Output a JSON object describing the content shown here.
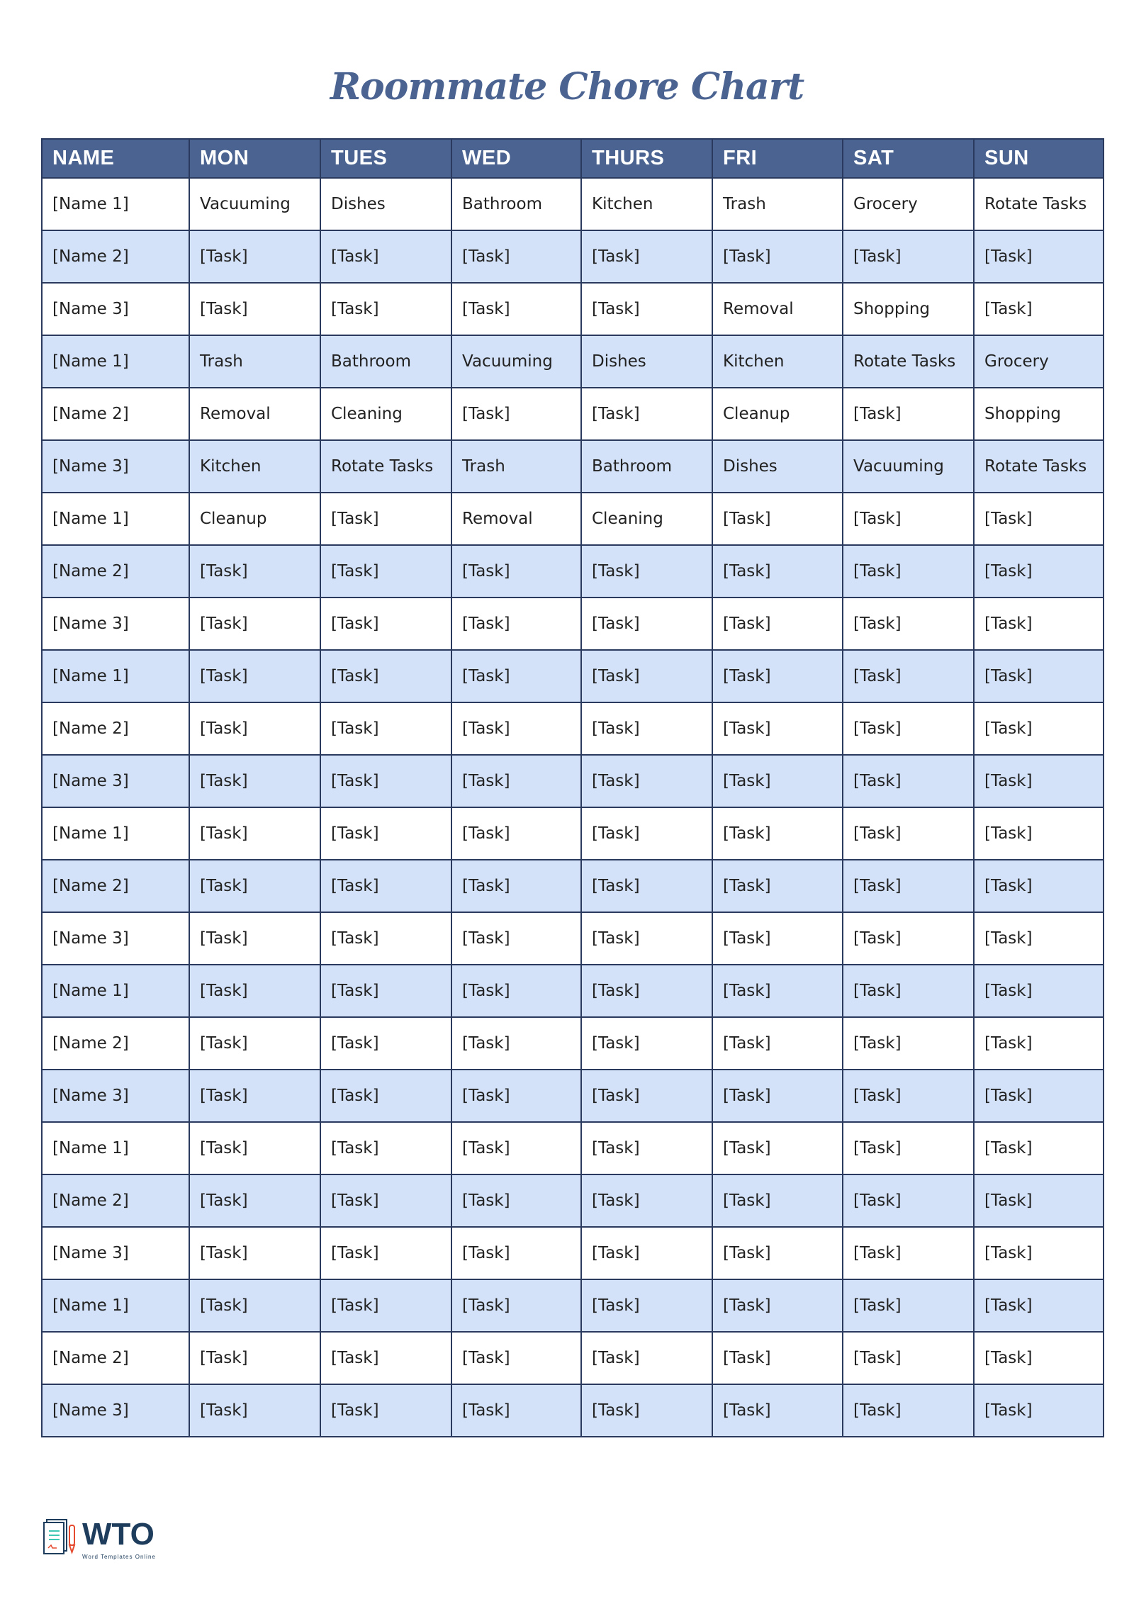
{
  "title": "Roommate Chore Chart",
  "colors": {
    "header": "#4a6391",
    "alt_row": "#d3e2f8",
    "border": "#2a3a5e"
  },
  "headers": [
    "NAME",
    "MON",
    "TUES",
    "WED",
    "THURS",
    "FRI",
    "SAT",
    "SUN"
  ],
  "rows": [
    [
      "[Name 1]",
      "Vacuuming",
      "Dishes",
      "Bathroom",
      "Kitchen",
      "Trash",
      "Grocery",
      "Rotate Tasks"
    ],
    [
      "[Name 2]",
      "[Task]",
      "[Task]",
      "[Task]",
      "[Task]",
      "[Task]",
      "[Task]",
      "[Task]"
    ],
    [
      "[Name 3]",
      "[Task]",
      "[Task]",
      "[Task]",
      "[Task]",
      "Removal",
      "Shopping",
      "[Task]"
    ],
    [
      "[Name 1]",
      "Trash",
      "Bathroom",
      "Vacuuming",
      "Dishes",
      "Kitchen",
      "Rotate Tasks",
      "Grocery"
    ],
    [
      "[Name 2]",
      "Removal",
      "Cleaning",
      "[Task]",
      "[Task]",
      "Cleanup",
      "[Task]",
      "Shopping"
    ],
    [
      "[Name 3]",
      "Kitchen",
      "Rotate Tasks",
      "Trash",
      "Bathroom",
      "Dishes",
      "Vacuuming",
      "Rotate Tasks"
    ],
    [
      "[Name 1]",
      "Cleanup",
      "[Task]",
      "Removal",
      "Cleaning",
      "[Task]",
      "[Task]",
      "[Task]"
    ],
    [
      "[Name 2]",
      "[Task]",
      "[Task]",
      "[Task]",
      "[Task]",
      "[Task]",
      "[Task]",
      "[Task]"
    ],
    [
      "[Name 3]",
      "[Task]",
      "[Task]",
      "[Task]",
      "[Task]",
      "[Task]",
      "[Task]",
      "[Task]"
    ],
    [
      "[Name 1]",
      "[Task]",
      "[Task]",
      "[Task]",
      "[Task]",
      "[Task]",
      "[Task]",
      "[Task]"
    ],
    [
      "[Name 2]",
      "[Task]",
      "[Task]",
      "[Task]",
      "[Task]",
      "[Task]",
      "[Task]",
      "[Task]"
    ],
    [
      "[Name 3]",
      "[Task]",
      "[Task]",
      "[Task]",
      "[Task]",
      "[Task]",
      "[Task]",
      "[Task]"
    ],
    [
      "[Name 1]",
      "[Task]",
      "[Task]",
      "[Task]",
      "[Task]",
      "[Task]",
      "[Task]",
      "[Task]"
    ],
    [
      "[Name 2]",
      "[Task]",
      "[Task]",
      "[Task]",
      "[Task]",
      "[Task]",
      "[Task]",
      "[Task]"
    ],
    [
      "[Name 3]",
      "[Task]",
      "[Task]",
      "[Task]",
      "[Task]",
      "[Task]",
      "[Task]",
      "[Task]"
    ],
    [
      "[Name 1]",
      "[Task]",
      "[Task]",
      "[Task]",
      "[Task]",
      "[Task]",
      "[Task]",
      "[Task]"
    ],
    [
      "[Name 2]",
      "[Task]",
      "[Task]",
      "[Task]",
      "[Task]",
      "[Task]",
      "[Task]",
      "[Task]"
    ],
    [
      "[Name 3]",
      "[Task]",
      "[Task]",
      "[Task]",
      "[Task]",
      "[Task]",
      "[Task]",
      "[Task]"
    ],
    [
      "[Name 1]",
      "[Task]",
      "[Task]",
      "[Task]",
      "[Task]",
      "[Task]",
      "[Task]",
      "[Task]"
    ],
    [
      "[Name 2]",
      "[Task]",
      "[Task]",
      "[Task]",
      "[Task]",
      "[Task]",
      "[Task]",
      "[Task]"
    ],
    [
      "[Name 3]",
      "[Task]",
      "[Task]",
      "[Task]",
      "[Task]",
      "[Task]",
      "[Task]",
      "[Task]"
    ],
    [
      "[Name 1]",
      "[Task]",
      "[Task]",
      "[Task]",
      "[Task]",
      "[Task]",
      "[Task]",
      "[Task]"
    ],
    [
      "[Name 2]",
      "[Task]",
      "[Task]",
      "[Task]",
      "[Task]",
      "[Task]",
      "[Task]",
      "[Task]"
    ],
    [
      "[Name 3]",
      "[Task]",
      "[Task]",
      "[Task]",
      "[Task]",
      "[Task]",
      "[Task]",
      "[Task]"
    ]
  ],
  "logo": {
    "text": "WTO",
    "subtitle": "Word Templates Online",
    "icon": "document-pen-icon"
  }
}
